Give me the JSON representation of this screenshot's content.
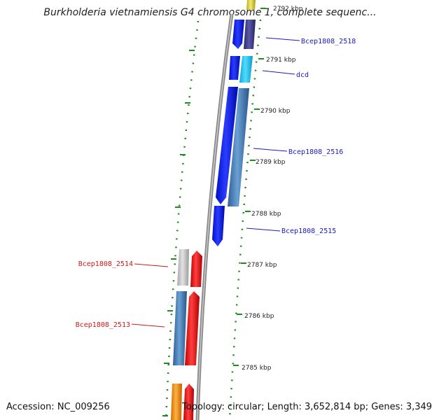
{
  "title": "Burkholderia vietnamiensis G4 chromosome 1, complete sequenc...",
  "footer": {
    "accession": "Accession: NC_009256",
    "summary": "Topology: circular; Length: 3,652,814 bp; Genes: 3,349"
  },
  "colors": {
    "plus_gene_blue": "#0a1ee8",
    "minus_gene_steel": "#4a82b8",
    "dark_purple": "#3a3a8c",
    "cyan": "#22c8f0",
    "red_gene": "#e81414",
    "grey_gene": "#bdbdbd",
    "orange_gene": "#f08c14",
    "yellow_gene": "#d8cc40",
    "backbone": "#8a8a8a",
    "tick_green": "#1e8c1e",
    "label_blue": "#1a1ac8",
    "label_red": "#d01818"
  },
  "ticks": [
    {
      "label": "2792 kbp"
    },
    {
      "label": "2791 kbp"
    },
    {
      "label": "2790 kbp"
    },
    {
      "label": "2789 kbp"
    },
    {
      "label": "2788 kbp"
    },
    {
      "label": "2787 kbp"
    },
    {
      "label": "2786 kbp"
    },
    {
      "label": "2785 kbp"
    }
  ],
  "gene_labels": {
    "bcep2518": "Bcep1808_2518",
    "dcd": "dcd",
    "bcep2516": "Bcep1808_2516",
    "bcep2515": "Bcep1808_2515",
    "bcep2514": "Bcep1808_2514",
    "bcep2513": "Bcep1808_2513"
  }
}
